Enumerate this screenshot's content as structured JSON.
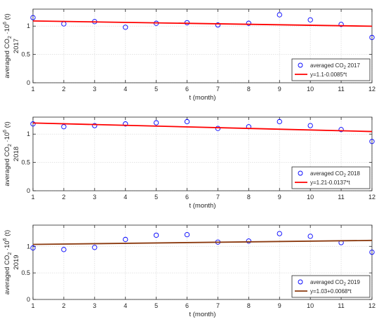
{
  "chart_data": [
    {
      "type": "scatter",
      "xlabel": "t (month)",
      "ylabel_main": "averaged CO",
      "ylabel_sub": "2",
      "ylabel_mid": " ·10",
      "ylabel_sup": "6",
      "ylabel_tail": " (t)",
      "ylabel_year": "2017",
      "xlim": [
        1,
        12
      ],
      "ylim": [
        0,
        1.3
      ],
      "xticks": [
        1,
        2,
        3,
        4,
        5,
        6,
        7,
        8,
        9,
        10,
        11,
        12
      ],
      "yticks": [
        0,
        0.5,
        1
      ],
      "ytick_labels": [
        "0",
        "0.5",
        "1"
      ],
      "grid": true,
      "legend_position": "bottom-right",
      "series": [
        {
          "name": "averaged CO",
          "name_sub": "2",
          "name_tail": " 2017",
          "kind": "markers",
          "color": "#0000ff",
          "x": [
            1,
            2,
            3,
            4,
            5,
            6,
            7,
            8,
            9,
            10,
            11,
            12
          ],
          "y": [
            1.15,
            1.04,
            1.08,
            0.98,
            1.05,
            1.06,
            1.02,
            1.05,
            1.2,
            1.11,
            1.03,
            0.8
          ]
        },
        {
          "name": "y=1.1-0.0085*t",
          "kind": "line",
          "color": "#ff0000",
          "intercept": 1.1,
          "slope": -0.0085
        }
      ]
    },
    {
      "type": "scatter",
      "xlabel": "t (month)",
      "ylabel_main": "averaged CO",
      "ylabel_sub": "2",
      "ylabel_mid": " ·10",
      "ylabel_sup": "6",
      "ylabel_tail": " (t)",
      "ylabel_year": "2018",
      "xlim": [
        1,
        12
      ],
      "ylim": [
        0,
        1.3
      ],
      "xticks": [
        1,
        2,
        3,
        4,
        5,
        6,
        7,
        8,
        9,
        10,
        11,
        12
      ],
      "yticks": [
        0,
        0.5,
        1
      ],
      "ytick_labels": [
        "0",
        "0.5",
        "1"
      ],
      "grid": true,
      "legend_position": "bottom-right",
      "series": [
        {
          "name": "averaged CO",
          "name_sub": "2",
          "name_tail": " 2018",
          "kind": "markers",
          "color": "#0000ff",
          "x": [
            1,
            2,
            3,
            4,
            5,
            6,
            7,
            8,
            9,
            10,
            11,
            12
          ],
          "y": [
            1.18,
            1.13,
            1.15,
            1.18,
            1.2,
            1.22,
            1.1,
            1.13,
            1.22,
            1.15,
            1.08,
            0.87
          ]
        },
        {
          "name": "y=1.21-0.0137*t",
          "kind": "line",
          "color": "#ff0000",
          "intercept": 1.21,
          "slope": -0.0137
        }
      ]
    },
    {
      "type": "scatter",
      "xlabel": "t (month)",
      "ylabel_main": "averaged CO",
      "ylabel_sub": "2",
      "ylabel_mid": " ·10",
      "ylabel_sup": "6",
      "ylabel_tail": " (t)",
      "ylabel_year": "2019",
      "xlim": [
        1,
        12
      ],
      "ylim": [
        0,
        1.4
      ],
      "xticks": [
        1,
        2,
        3,
        4,
        5,
        6,
        7,
        8,
        9,
        10,
        11,
        12
      ],
      "yticks": [
        0,
        0.5,
        1
      ],
      "ytick_labels": [
        "0",
        "0.5",
        "1"
      ],
      "grid": true,
      "legend_position": "bottom-right",
      "series": [
        {
          "name": "averaged CO",
          "name_sub": "2",
          "name_tail": " 2019",
          "kind": "markers",
          "color": "#0000ff",
          "x": [
            1,
            2,
            3,
            4,
            5,
            6,
            7,
            8,
            9,
            10,
            11,
            12
          ],
          "y": [
            0.97,
            0.94,
            0.98,
            1.13,
            1.21,
            1.22,
            1.08,
            1.1,
            1.24,
            1.19,
            1.07,
            0.89
          ]
        },
        {
          "name": "y=1.03+0.0068*t",
          "kind": "line",
          "color": "#8b3a0f",
          "intercept": 1.03,
          "slope": 0.0068
        }
      ]
    }
  ]
}
